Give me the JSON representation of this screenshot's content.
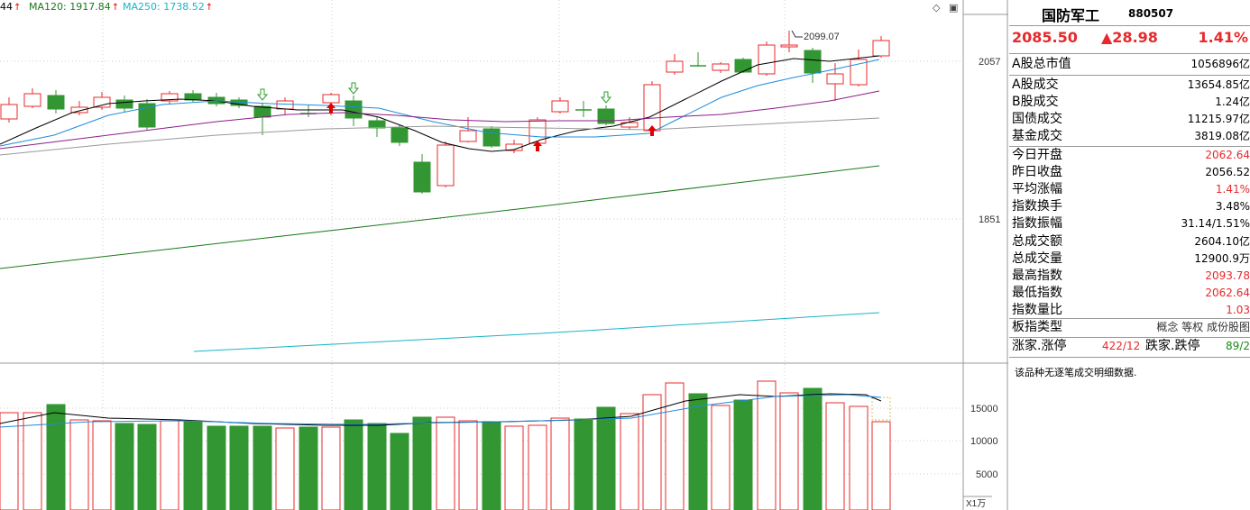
{
  "header": {
    "ma_labels": [
      {
        "text": "44",
        "color": "#333333"
      },
      {
        "text": "MA120: 1917.84",
        "color": "#1a7a1a"
      },
      {
        "text": "MA250: 1738.52",
        "color": "#18b4c8"
      }
    ],
    "controls": {
      "diamond": "◇",
      "window": "▣"
    }
  },
  "price_axis": {
    "labels": [
      "2057",
      "1851"
    ],
    "high_marker": "2099.07"
  },
  "volume_axis": {
    "labels": [
      "15000",
      "10000",
      "5000"
    ],
    "unit": "X1万"
  },
  "quote": {
    "name": "国防军工",
    "code": "880507",
    "price": "2085.50",
    "change": "▲28.98",
    "change_pct": "1.41%"
  },
  "stats_group1": [
    {
      "label": "A股总市值",
      "value": "1056896亿"
    }
  ],
  "stats_group2": [
    {
      "label": "A股成交",
      "value": "13654.85亿"
    },
    {
      "label": "B股成交",
      "value": "1.24亿"
    },
    {
      "label": "国债成交",
      "value": "11215.97亿"
    },
    {
      "label": "基金成交",
      "value": "3819.08亿"
    }
  ],
  "stats_group3": [
    {
      "label": "今日开盘",
      "value": "2062.64",
      "color": "red"
    },
    {
      "label": "昨日收盘",
      "value": "2056.52"
    },
    {
      "label": "平均涨幅",
      "value": "1.41%",
      "color": "red"
    },
    {
      "label": "指数换手",
      "value": "3.48%"
    },
    {
      "label": "指数振幅",
      "value": "31.14/1.51%"
    },
    {
      "label": "总成交额",
      "value": "2604.10亿"
    },
    {
      "label": "总成交量",
      "value": "12900.9万"
    },
    {
      "label": "最高指数",
      "value": "2093.78",
      "color": "red"
    },
    {
      "label": "最低指数",
      "value": "2062.64",
      "color": "red"
    },
    {
      "label": "指数量比",
      "value": "1.03",
      "color": "red"
    }
  ],
  "board_type": {
    "label": "板指类型",
    "value": "概念 等权 成份股图"
  },
  "breadth": {
    "up_label": "涨家.涨停",
    "up_value": "422/12",
    "down_label": "跌家.跌停",
    "down_value": "89/2"
  },
  "note": "该品种无逐笔成交明细数据."
}
